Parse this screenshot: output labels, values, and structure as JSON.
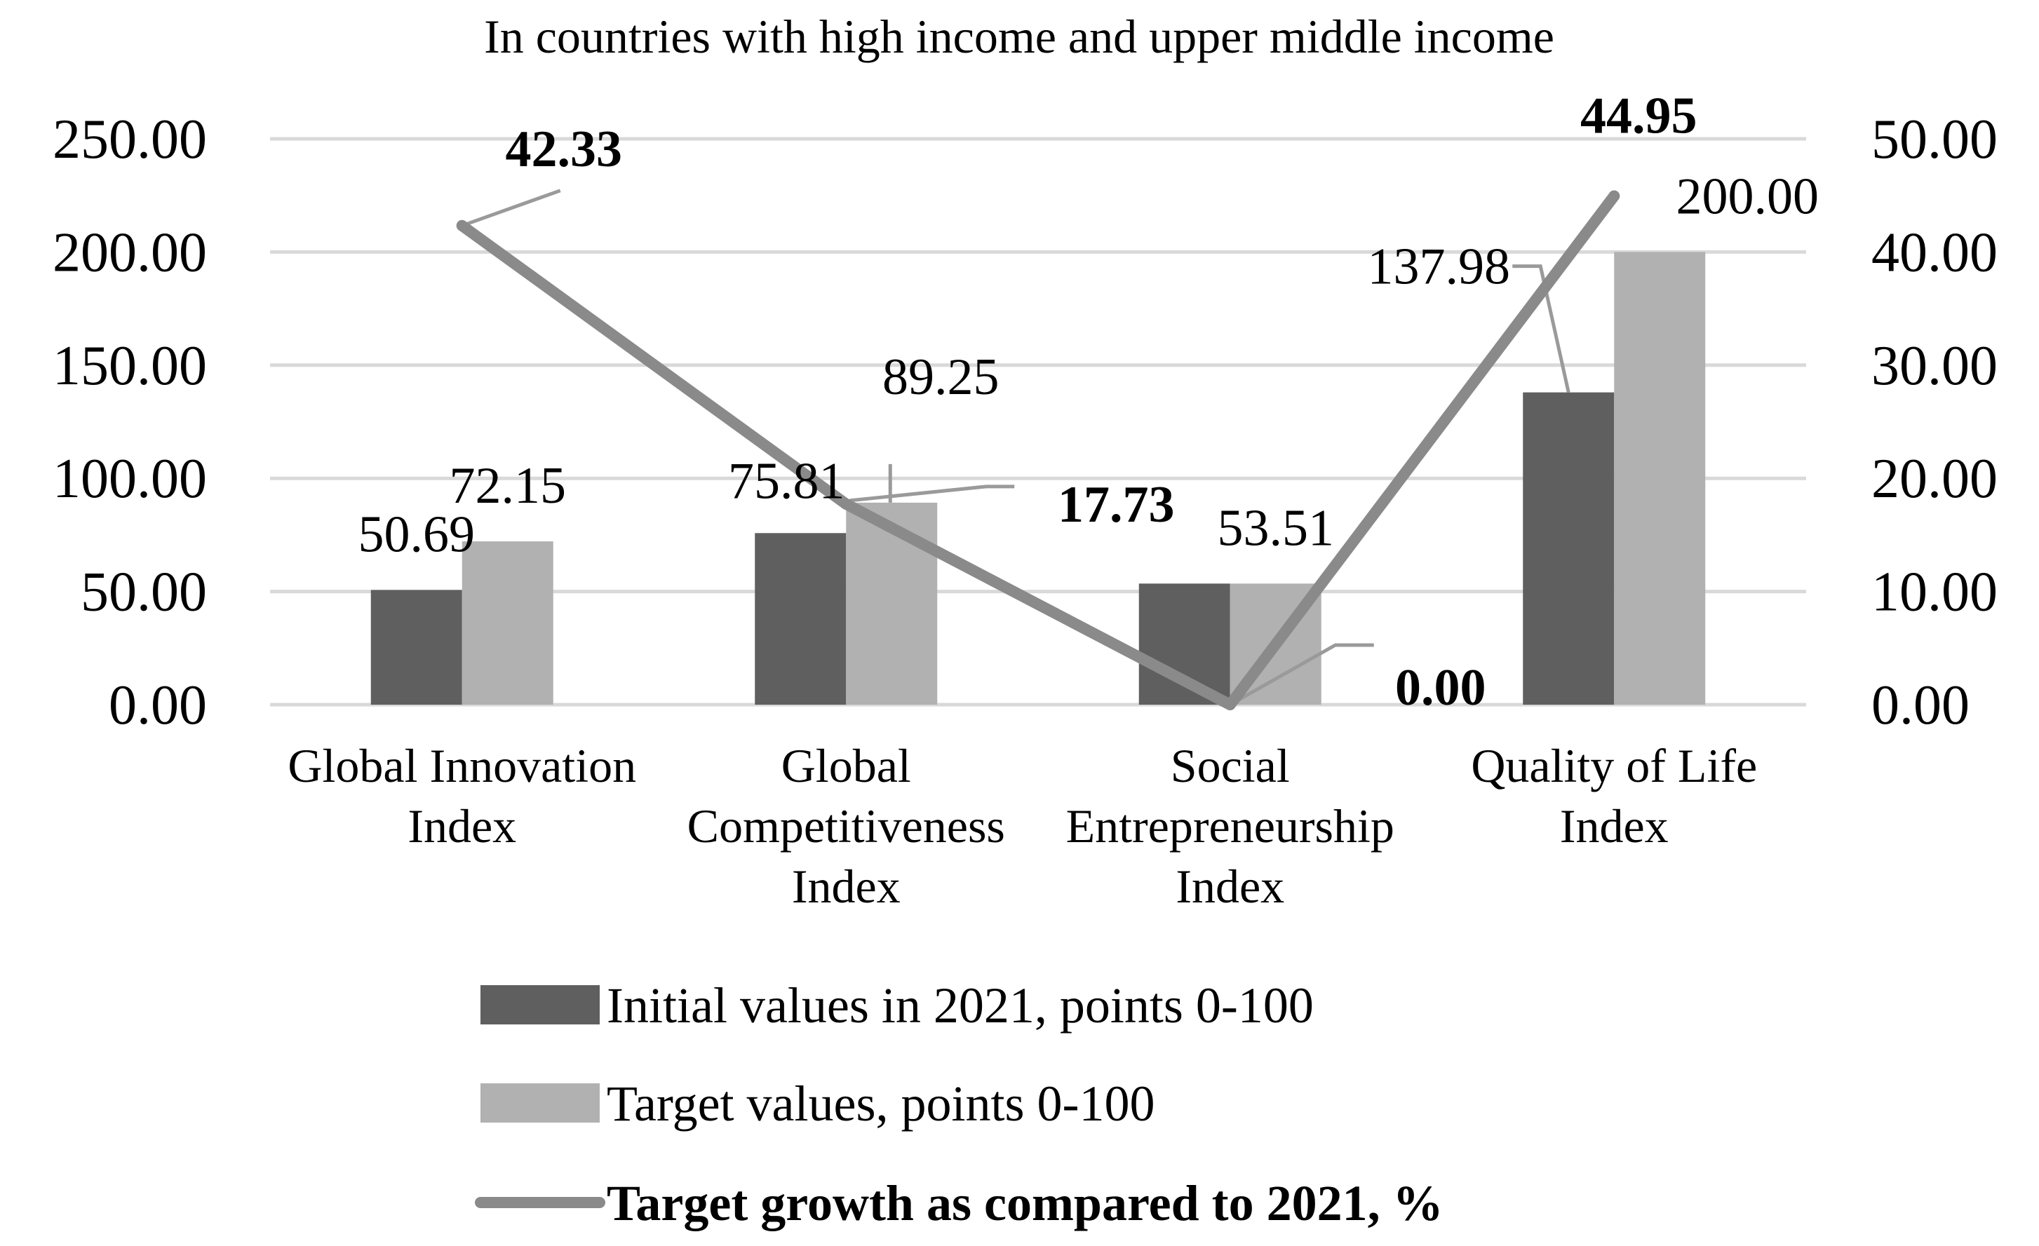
{
  "chart_data": {
    "type": "bar",
    "title": "In countries with high income and upper middle income",
    "categories": [
      [
        "Global Innovation",
        "Index"
      ],
      [
        "Global",
        "Competitiveness",
        "Index"
      ],
      [
        "Social",
        "Entrepreneurship",
        "Index"
      ],
      [
        "Quality of Life",
        "Index"
      ]
    ],
    "series": [
      {
        "name": "Initial values in 2021, points 0-100",
        "kind": "bar",
        "axis": "left",
        "color": "#5f5f5f",
        "values": [
          50.69,
          75.81,
          53.51,
          137.98
        ],
        "labels": [
          "50.69",
          "75.81",
          "",
          "137.98"
        ]
      },
      {
        "name": "Target values, points 0-100",
        "kind": "bar",
        "axis": "left",
        "color": "#b1b1b1",
        "values": [
          72.15,
          89.25,
          53.51,
          200.0
        ],
        "labels": [
          "72.15",
          "89.25",
          "53.51",
          "200.00"
        ]
      },
      {
        "name": "Target growth as compared to 2021, %",
        "kind": "line",
        "axis": "right",
        "color": "#8a8a8a",
        "values": [
          42.33,
          17.73,
          0.0,
          44.95
        ],
        "labels": [
          "42.33",
          "17.73",
          "0.00",
          "44.95"
        ]
      }
    ],
    "left_axis": {
      "ylim": [
        0,
        250
      ],
      "ticks": [
        "0.00",
        "50.00",
        "100.00",
        "150.00",
        "200.00",
        "250.00"
      ]
    },
    "right_axis": {
      "ylim": [
        0,
        50
      ],
      "ticks": [
        "0.00",
        "10.00",
        "20.00",
        "30.00",
        "40.00",
        "50.00"
      ]
    },
    "grid": true,
    "legend_position": "bottom"
  }
}
